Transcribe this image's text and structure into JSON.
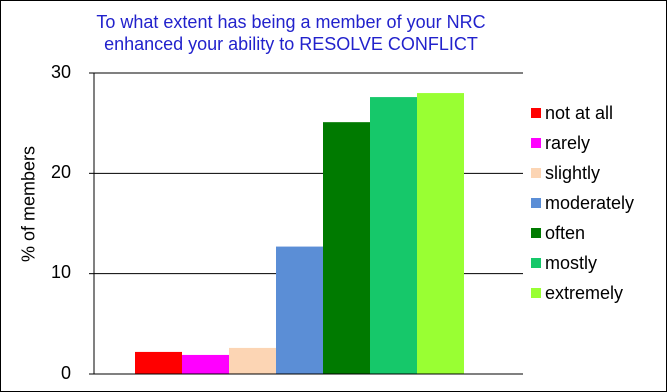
{
  "chart_data": {
    "type": "bar",
    "title_lines": [
      "To what extent has being a member of your NRC",
      "enhanced your ability to RESOLVE CONFLICT"
    ],
    "ylabel": "% of members",
    "xlabel": "",
    "ylim": [
      0,
      30
    ],
    "yticks": [
      "0",
      "10",
      "20",
      "30"
    ],
    "grid": true,
    "legend_position": "right",
    "series": [
      {
        "name": "not at all",
        "value": 2.2,
        "color": "#ff0000"
      },
      {
        "name": "rarely",
        "value": 1.9,
        "color": "#ff00ff"
      },
      {
        "name": "slightly",
        "value": 2.6,
        "color": "#fcd5b4"
      },
      {
        "name": "moderately",
        "value": 12.7,
        "color": "#5b8ed6"
      },
      {
        "name": "often",
        "value": 25.1,
        "color": "#007a00"
      },
      {
        "name": "mostly",
        "value": 27.6,
        "color": "#16c86a"
      },
      {
        "name": "extremely",
        "value": 28.0,
        "color": "#99ff33"
      }
    ]
  }
}
